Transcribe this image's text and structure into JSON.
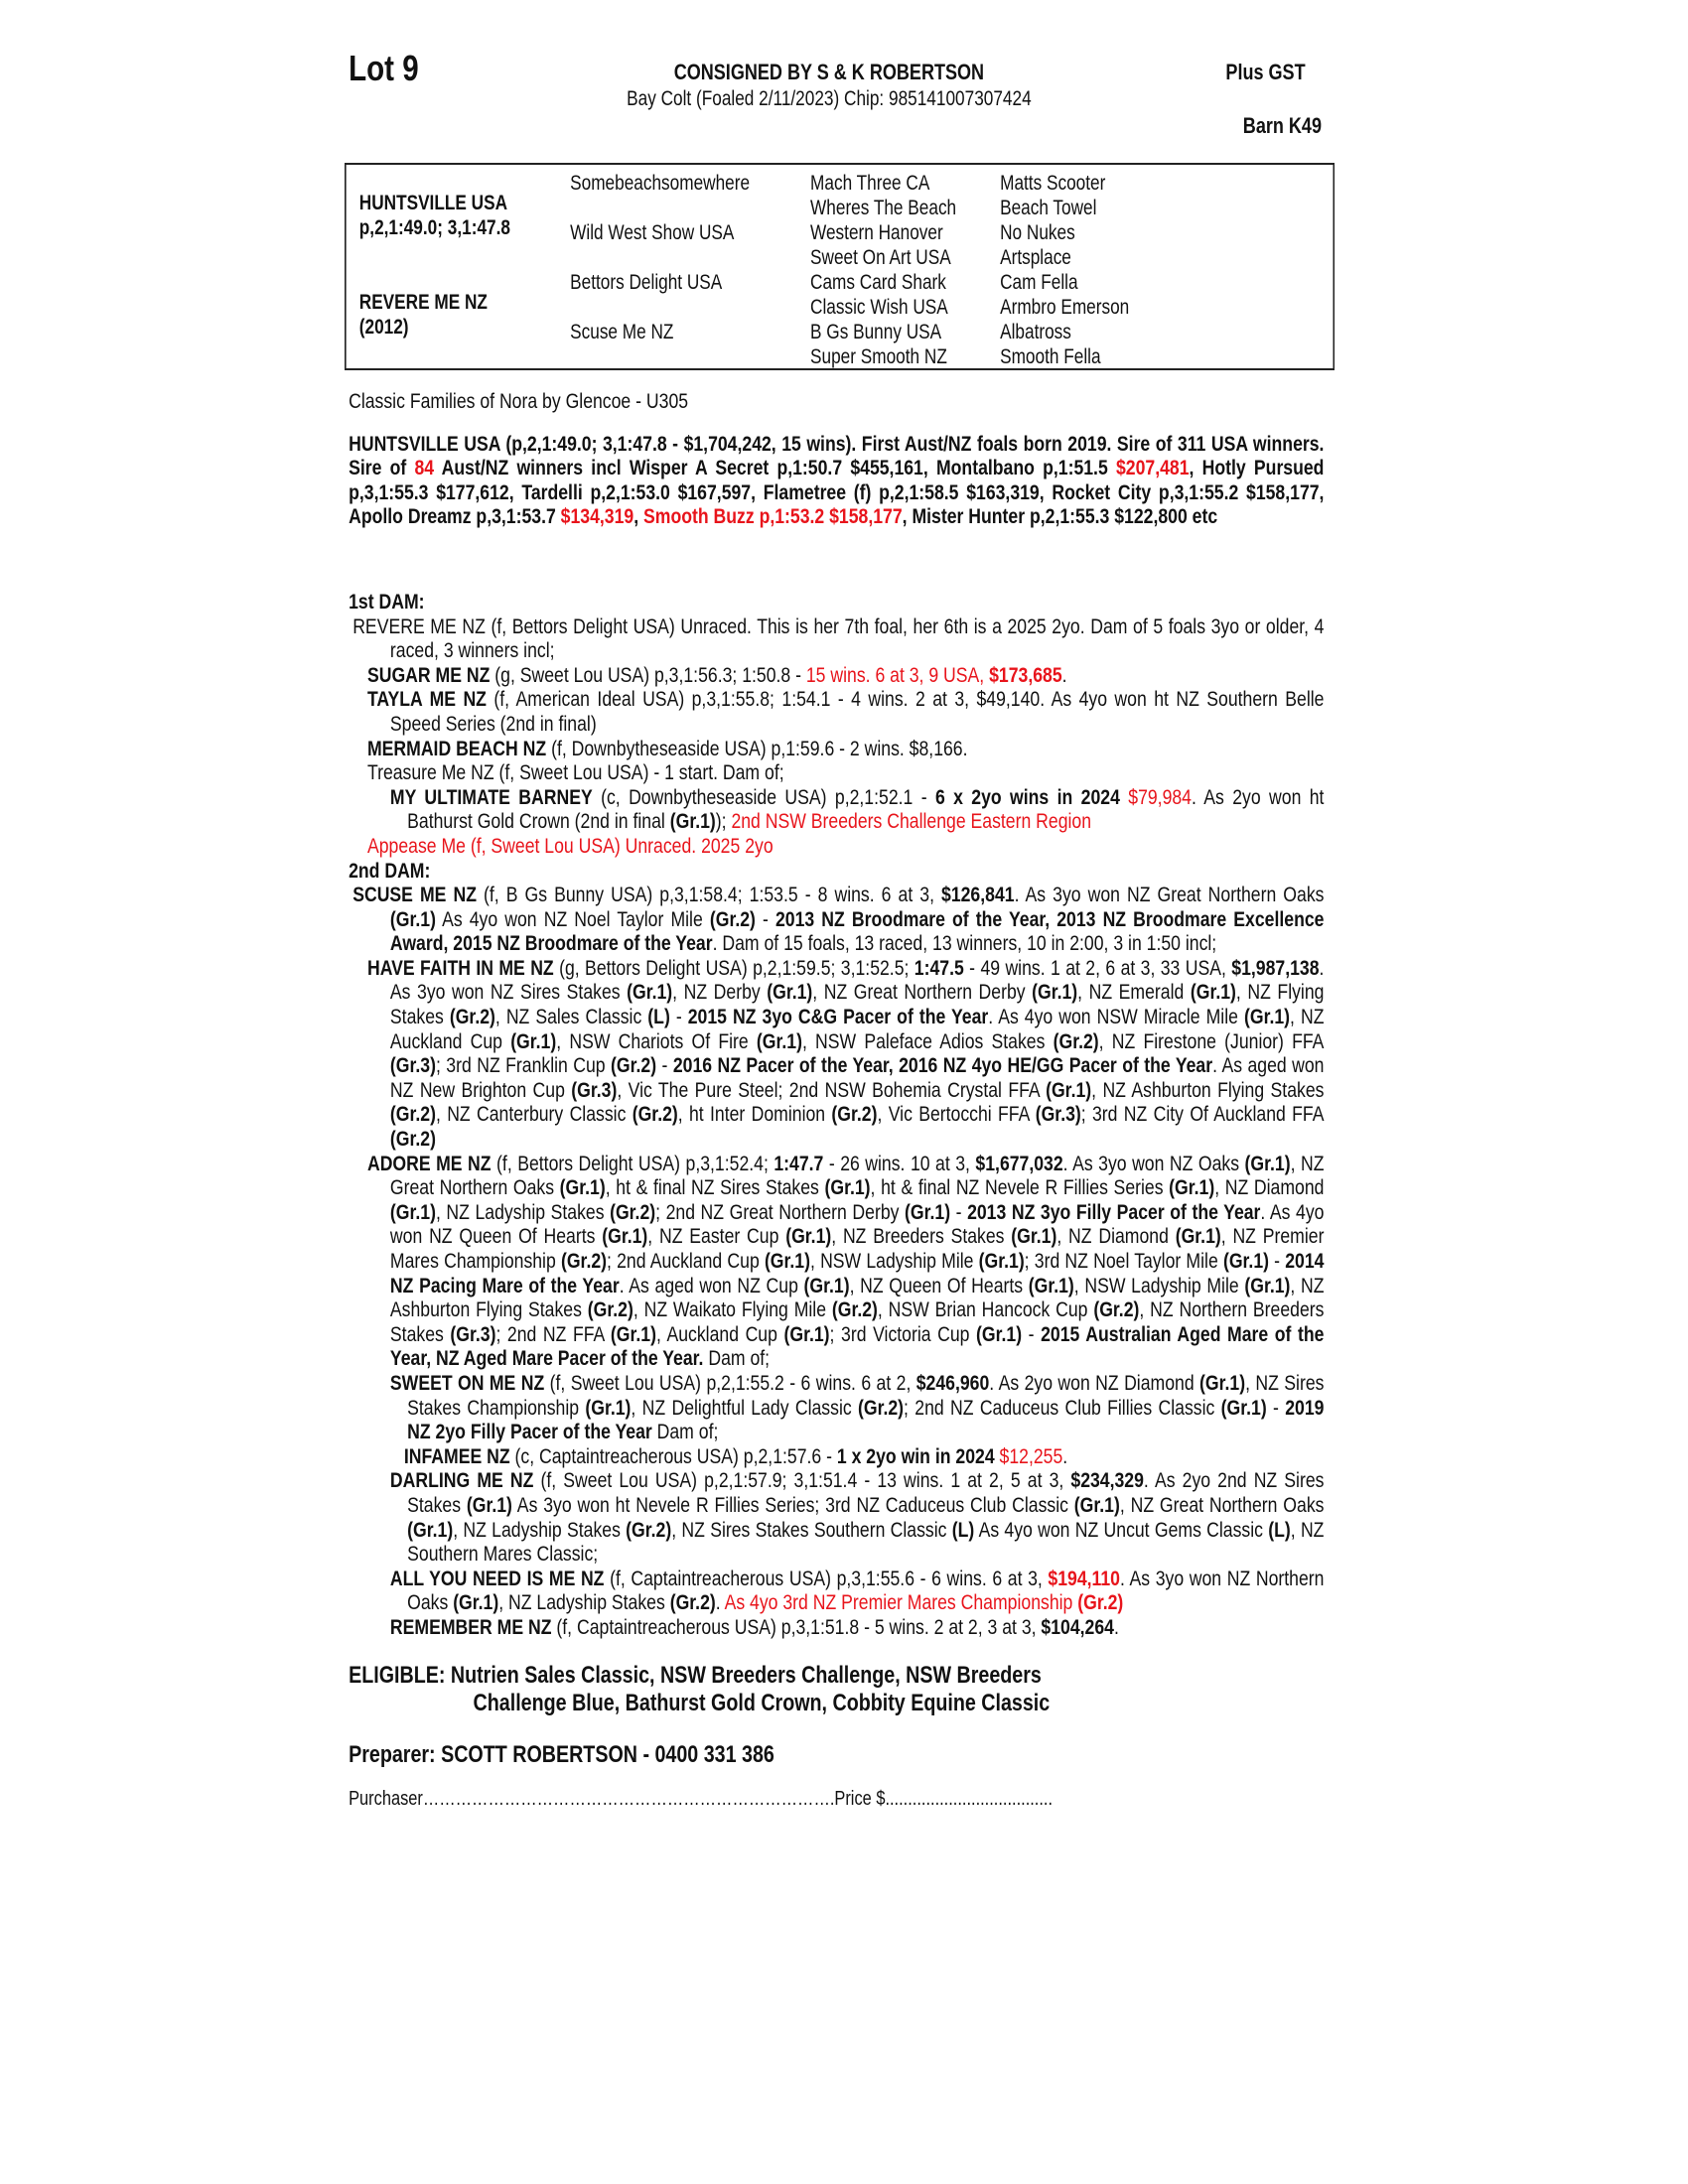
{
  "header": {
    "lot": "Lot 9",
    "consigned": "CONSIGNED BY S & K ROBERTSON",
    "subtitle": "Bay Colt (Foaled 2/11/2023) Chip: 985141007307424",
    "gst": "Plus GST",
    "barn": "Barn K49"
  },
  "pedigree": {
    "sire": "HUNTSVILLE USA",
    "sire_record": "p,2,1:49.0; 3,1:47.8",
    "dam": "REVERE ME NZ",
    "dam_year": "(2012)",
    "gen2": [
      "Somebeachsomewhere",
      "Wild West Show USA",
      "Bettors Delight USA",
      "Scuse Me NZ"
    ],
    "gen3": [
      "Mach Three CA",
      "Wheres The Beach",
      "Western Hanover",
      "Sweet On Art USA",
      "Cams Card Shark",
      "Classic Wish USA",
      "B Gs Bunny USA",
      "Super Smooth NZ"
    ],
    "gen4": [
      "Matts Scooter",
      "Beach Towel",
      "No Nukes",
      "Artsplace",
      "Cam Fella",
      "Armbro Emerson",
      "Albatross",
      "Smooth Fella"
    ]
  },
  "family": "Classic Families of Nora by Glencoe - U305",
  "accent_color": "#e8141b",
  "paras": [
    {
      "cls": "p b",
      "segs": [
        {
          "t": "HUNTSVILLE USA (p,2,1:49.0; 3,1:47.8 - $1,704,242, 15 wins).  First Aust/NZ foals born 2019. Sire of 311 USA winners. Sire of ",
          "s": ""
        },
        {
          "t": "84",
          "s": "r"
        },
        {
          "t": " Aust/NZ winners incl Wisper A Secret p,1:50.7 $455,161, Montalbano p,1:51.5 ",
          "s": ""
        },
        {
          "t": "$207,481",
          "s": "r"
        },
        {
          "t": ", Hotly Pursued p,3,1:55.3 $177,612, Tardelli p,2,1:53.0 $167,597, Flametree (f) p,2,1:58.5 $163,319, Rocket City p,3,1:55.2 $158,177, Apollo Dreamz p,3,1:53.7 ",
          "s": ""
        },
        {
          "t": "$134,319",
          "s": "r"
        },
        {
          "t": ", ",
          "s": ""
        },
        {
          "t": "Smooth Buzz p,1:53.2 $158,177",
          "s": "r"
        },
        {
          "t": ", Mister Hunter p,2,1:55.3 $122,800 etc",
          "s": ""
        }
      ]
    },
    {
      "cls": "gap",
      "segs": []
    },
    {
      "cls": "p hd",
      "segs": [
        {
          "t": "1st DAM:",
          "s": ""
        }
      ]
    },
    {
      "cls": "p l0",
      "segs": [
        {
          "t": "REVERE ME NZ (f, Bettors Delight USA) Unraced. This is her 7th foal, her 6th is a 2025 2yo. Dam of 5 foals 3yo or older, 4 raced, 3 winners incl;",
          "s": ""
        }
      ]
    },
    {
      "cls": "p l1",
      "segs": [
        {
          "t": "SUGAR ME NZ",
          "s": "b"
        },
        {
          "t": " (g, Sweet Lou USA) p,3,1:56.3; 1:50.8 - ",
          "s": ""
        },
        {
          "t": "15 wins. 6 at 3, 9 USA, ",
          "s": "r"
        },
        {
          "t": "$173,685",
          "s": "b r"
        },
        {
          "t": ".",
          "s": ""
        }
      ]
    },
    {
      "cls": "p l1",
      "segs": [
        {
          "t": "TAYLA ME NZ",
          "s": "b"
        },
        {
          "t": " (f, American Ideal USA) p,3,1:55.8; 1:54.1 - 4 wins. 2 at 3, $49,140. As 4yo won ht NZ Southern Belle Speed Series (2nd in final)",
          "s": ""
        }
      ]
    },
    {
      "cls": "p l1",
      "segs": [
        {
          "t": "MERMAID BEACH NZ",
          "s": "b"
        },
        {
          "t": " (f, Downbytheseaside USA) p,1:59.6 - 2 wins. $8,166.",
          "s": ""
        }
      ]
    },
    {
      "cls": "p l1",
      "segs": [
        {
          "t": "Treasure Me NZ (f, Sweet Lou USA) - 1 start. Dam of;",
          "s": ""
        }
      ]
    },
    {
      "cls": "p l2",
      "segs": [
        {
          "t": "MY ULTIMATE BARNEY",
          "s": "b"
        },
        {
          "t": " (c, Downbytheseaside USA) p,2,1:52.1 - ",
          "s": ""
        },
        {
          "t": "6 x 2yo wins in 2024",
          "s": "b"
        },
        {
          "t": " ",
          "s": ""
        },
        {
          "t": "$79,984",
          "s": "r"
        },
        {
          "t": ". As 2yo won ht Bathurst Gold Crown (2nd in final ",
          "s": ""
        },
        {
          "t": "(Gr.1)",
          "s": "b"
        },
        {
          "t": "); ",
          "s": ""
        },
        {
          "t": "2nd NSW Breeders Challenge Eastern Region",
          "s": "r"
        }
      ]
    },
    {
      "cls": "p l1",
      "segs": [
        {
          "t": "Appease Me (f, Sweet Lou USA) Unraced. 2025 2yo",
          "s": "r"
        }
      ]
    },
    {
      "cls": "p hd",
      "segs": [
        {
          "t": "2nd DAM:",
          "s": ""
        }
      ]
    },
    {
      "cls": "p l0",
      "segs": [
        {
          "t": "SCUSE ME NZ",
          "s": "b"
        },
        {
          "t": " (f, B Gs Bunny USA) p,3,1:58.4; 1:53.5 - 8 wins. 6 at 3, ",
          "s": ""
        },
        {
          "t": "$126,841",
          "s": "b"
        },
        {
          "t": ". As 3yo won NZ Great Northern Oaks ",
          "s": ""
        },
        {
          "t": "(Gr.1)",
          "s": "b"
        },
        {
          "t": " As 4yo won NZ Noel Taylor Mile ",
          "s": ""
        },
        {
          "t": "(Gr.2)",
          "s": "b"
        },
        {
          "t": " - ",
          "s": ""
        },
        {
          "t": "2013 NZ Broodmare of the Year, 2013 NZ Broodmare Excellence Award, 2015 NZ Broodmare of the Year",
          "s": "b"
        },
        {
          "t": ". Dam of 15 foals, 13 raced, 13 winners, 10 in 2:00, 3 in 1:50 incl;",
          "s": ""
        }
      ]
    },
    {
      "cls": "p l1",
      "segs": [
        {
          "t": "HAVE FAITH IN ME NZ",
          "s": "b"
        },
        {
          "t": " (g, Bettors Delight USA) p,2,1:59.5; 3,1:52.5; ",
          "s": ""
        },
        {
          "t": "1:47.5",
          "s": "b"
        },
        {
          "t": " - 49 wins. 1 at 2, 6 at 3, 33 USA, ",
          "s": ""
        },
        {
          "t": "$1,987,138",
          "s": "b"
        },
        {
          "t": ". As 3yo won NZ Sires Stakes ",
          "s": ""
        },
        {
          "t": "(Gr.1)",
          "s": "b"
        },
        {
          "t": ", NZ Derby ",
          "s": ""
        },
        {
          "t": "(Gr.1)",
          "s": "b"
        },
        {
          "t": ", NZ Great Northern Derby ",
          "s": ""
        },
        {
          "t": "(Gr.1)",
          "s": "b"
        },
        {
          "t": ", NZ Emerald ",
          "s": ""
        },
        {
          "t": "(Gr.1)",
          "s": "b"
        },
        {
          "t": ", NZ Flying Stakes ",
          "s": ""
        },
        {
          "t": "(Gr.2)",
          "s": "b"
        },
        {
          "t": ", NZ Sales Classic ",
          "s": ""
        },
        {
          "t": "(L)",
          "s": "b"
        },
        {
          "t": " - ",
          "s": ""
        },
        {
          "t": "2015 NZ 3yo C&G Pacer of the Year",
          "s": "b"
        },
        {
          "t": ". As 4yo won NSW Miracle Mile ",
          "s": ""
        },
        {
          "t": "(Gr.1)",
          "s": "b"
        },
        {
          "t": ", NZ Auckland Cup ",
          "s": ""
        },
        {
          "t": "(Gr.1)",
          "s": "b"
        },
        {
          "t": ", NSW Chariots Of Fire ",
          "s": ""
        },
        {
          "t": "(Gr.1)",
          "s": "b"
        },
        {
          "t": ", NSW Paleface Adios Stakes ",
          "s": ""
        },
        {
          "t": "(Gr.2)",
          "s": "b"
        },
        {
          "t": ", NZ Firestone (Junior) FFA ",
          "s": ""
        },
        {
          "t": "(Gr.3)",
          "s": "b"
        },
        {
          "t": "; 3rd NZ Franklin Cup ",
          "s": ""
        },
        {
          "t": "(Gr.2)",
          "s": "b"
        },
        {
          "t": " - ",
          "s": ""
        },
        {
          "t": "2016 NZ Pacer of the Year, 2016 NZ 4yo HE/GG Pacer of the Year",
          "s": "b"
        },
        {
          "t": ". As aged won NZ New Brighton Cup ",
          "s": ""
        },
        {
          "t": "(Gr.3)",
          "s": "b"
        },
        {
          "t": ", Vic The Pure Steel; 2nd NSW Bohemia Crystal FFA ",
          "s": ""
        },
        {
          "t": "(Gr.1)",
          "s": "b"
        },
        {
          "t": ", NZ Ashburton Flying Stakes ",
          "s": ""
        },
        {
          "t": "(Gr.2)",
          "s": "b"
        },
        {
          "t": ", NZ Canterbury Classic ",
          "s": ""
        },
        {
          "t": "(Gr.2)",
          "s": "b"
        },
        {
          "t": ", ht Inter Dominion ",
          "s": ""
        },
        {
          "t": "(Gr.2)",
          "s": "b"
        },
        {
          "t": ", Vic Bertocchi FFA ",
          "s": ""
        },
        {
          "t": "(Gr.3)",
          "s": "b"
        },
        {
          "t": "; 3rd NZ City Of Auckland FFA ",
          "s": ""
        },
        {
          "t": "(Gr.2)",
          "s": "b"
        }
      ]
    },
    {
      "cls": "p l1",
      "segs": [
        {
          "t": "ADORE ME NZ",
          "s": "b"
        },
        {
          "t": " (f, Bettors Delight USA) p,3,1:52.4; ",
          "s": ""
        },
        {
          "t": "1:47.7",
          "s": "b"
        },
        {
          "t": " - 26 wins. 10 at 3, ",
          "s": ""
        },
        {
          "t": "$1,677,032",
          "s": "b"
        },
        {
          "t": ". As 3yo won NZ Oaks ",
          "s": ""
        },
        {
          "t": "(Gr.1)",
          "s": "b"
        },
        {
          "t": ", NZ Great Northern Oaks ",
          "s": ""
        },
        {
          "t": "(Gr.1)",
          "s": "b"
        },
        {
          "t": ", ht & final NZ Sires Stakes ",
          "s": ""
        },
        {
          "t": "(Gr.1)",
          "s": "b"
        },
        {
          "t": ", ht & final NZ Nevele R Fillies Series ",
          "s": ""
        },
        {
          "t": "(Gr.1)",
          "s": "b"
        },
        {
          "t": ", NZ Diamond ",
          "s": ""
        },
        {
          "t": "(Gr.1)",
          "s": "b"
        },
        {
          "t": ", NZ Ladyship Stakes ",
          "s": ""
        },
        {
          "t": "(Gr.2)",
          "s": "b"
        },
        {
          "t": "; 2nd NZ Great Northern Derby ",
          "s": ""
        },
        {
          "t": "(Gr.1)",
          "s": "b"
        },
        {
          "t": " - ",
          "s": ""
        },
        {
          "t": "2013 NZ 3yo Filly Pacer of the Year",
          "s": "b"
        },
        {
          "t": ". As 4yo won NZ Queen Of Hearts ",
          "s": ""
        },
        {
          "t": "(Gr.1)",
          "s": "b"
        },
        {
          "t": ", NZ Easter Cup ",
          "s": ""
        },
        {
          "t": "(Gr.1)",
          "s": "b"
        },
        {
          "t": ", NZ Breeders Stakes ",
          "s": ""
        },
        {
          "t": "(Gr.1)",
          "s": "b"
        },
        {
          "t": ", NZ Diamond ",
          "s": ""
        },
        {
          "t": "(Gr.1)",
          "s": "b"
        },
        {
          "t": ", NZ Premier Mares Championship ",
          "s": ""
        },
        {
          "t": "(Gr.2)",
          "s": "b"
        },
        {
          "t": "; 2nd Auckland Cup ",
          "s": ""
        },
        {
          "t": "(Gr.1)",
          "s": "b"
        },
        {
          "t": ", NSW Ladyship Mile ",
          "s": ""
        },
        {
          "t": "(Gr.1)",
          "s": "b"
        },
        {
          "t": "; 3rd NZ Noel Taylor Mile ",
          "s": ""
        },
        {
          "t": "(Gr.1)",
          "s": "b"
        },
        {
          "t": " - ",
          "s": ""
        },
        {
          "t": "2014 NZ Pacing Mare of the Year",
          "s": "b"
        },
        {
          "t": ". As aged won NZ Cup ",
          "s": ""
        },
        {
          "t": "(Gr.1)",
          "s": "b"
        },
        {
          "t": ", NZ Queen Of Hearts ",
          "s": ""
        },
        {
          "t": "(Gr.1)",
          "s": "b"
        },
        {
          "t": ", NSW Ladyship Mile ",
          "s": ""
        },
        {
          "t": "(Gr.1)",
          "s": "b"
        },
        {
          "t": ", NZ Ashburton Flying Stakes ",
          "s": ""
        },
        {
          "t": "(Gr.2)",
          "s": "b"
        },
        {
          "t": ", NZ Waikato Flying Mile ",
          "s": ""
        },
        {
          "t": "(Gr.2)",
          "s": "b"
        },
        {
          "t": ", NSW Brian Hancock Cup ",
          "s": ""
        },
        {
          "t": "(Gr.2)",
          "s": "b"
        },
        {
          "t": ", NZ Northern Breeders Stakes ",
          "s": ""
        },
        {
          "t": "(Gr.3)",
          "s": "b"
        },
        {
          "t": "; 2nd NZ FFA ",
          "s": ""
        },
        {
          "t": "(Gr.1)",
          "s": "b"
        },
        {
          "t": ", Auckland Cup ",
          "s": ""
        },
        {
          "t": "(Gr.1)",
          "s": "b"
        },
        {
          "t": "; 3rd Victoria Cup ",
          "s": ""
        },
        {
          "t": "(Gr.1)",
          "s": "b"
        },
        {
          "t": " - ",
          "s": ""
        },
        {
          "t": "2015 Australian Aged Mare of the Year, NZ Aged Mare Pacer of the Year.",
          "s": "b"
        },
        {
          "t": " Dam of;",
          "s": ""
        }
      ]
    },
    {
      "cls": "p l2",
      "segs": [
        {
          "t": "SWEET ON ME NZ",
          "s": "b"
        },
        {
          "t": " (f, Sweet Lou USA) p,2,1:55.2 - 6 wins. 6 at 2, ",
          "s": ""
        },
        {
          "t": "$246,960",
          "s": "b"
        },
        {
          "t": ". As 2yo won NZ Diamond ",
          "s": ""
        },
        {
          "t": "(Gr.1)",
          "s": "b"
        },
        {
          "t": ", NZ Sires Stakes Championship ",
          "s": ""
        },
        {
          "t": "(Gr.1)",
          "s": "b"
        },
        {
          "t": ", NZ Delightful Lady Classic ",
          "s": ""
        },
        {
          "t": "(Gr.2)",
          "s": "b"
        },
        {
          "t": "; 2nd NZ Caduceus Club Fillies Classic ",
          "s": ""
        },
        {
          "t": "(Gr.1)",
          "s": "b"
        },
        {
          "t": " - ",
          "s": ""
        },
        {
          "t": "2019 NZ 2yo Filly Pacer of the Year",
          "s": "b"
        },
        {
          "t": " Dam of;",
          "s": ""
        }
      ]
    },
    {
      "cls": "p l3",
      "segs": [
        {
          "t": "INFAMEE NZ",
          "s": "b"
        },
        {
          "t": " (c, Captaintreacherous USA) p,2,1:57.6 - ",
          "s": ""
        },
        {
          "t": "1 x 2yo win in 2024",
          "s": "b"
        },
        {
          "t": " ",
          "s": ""
        },
        {
          "t": "$12,255",
          "s": "r"
        },
        {
          "t": ".",
          "s": ""
        }
      ]
    },
    {
      "cls": "p l2",
      "segs": [
        {
          "t": "DARLING ME NZ",
          "s": "b"
        },
        {
          "t": " (f, Sweet Lou USA) p,2,1:57.9; 3,1:51.4 - 13 wins. 1 at 2, 5 at 3, ",
          "s": ""
        },
        {
          "t": "$234,329",
          "s": "b"
        },
        {
          "t": ". As 2yo 2nd NZ Sires Stakes ",
          "s": ""
        },
        {
          "t": "(Gr.1)",
          "s": "b"
        },
        {
          "t": " As 3yo won ht Nevele R Fillies Series; 3rd NZ Caduceus Club Classic ",
          "s": ""
        },
        {
          "t": "(Gr.1)",
          "s": "b"
        },
        {
          "t": ", NZ Great Northern Oaks ",
          "s": ""
        },
        {
          "t": "(Gr.1)",
          "s": "b"
        },
        {
          "t": ", NZ Ladyship Stakes ",
          "s": ""
        },
        {
          "t": "(Gr.2)",
          "s": "b"
        },
        {
          "t": ", NZ Sires Stakes Southern Classic ",
          "s": ""
        },
        {
          "t": "(L)",
          "s": "b"
        },
        {
          "t": " As 4yo won NZ Uncut Gems Classic ",
          "s": ""
        },
        {
          "t": "(L)",
          "s": "b"
        },
        {
          "t": ", NZ Southern Mares Classic;",
          "s": ""
        }
      ]
    },
    {
      "cls": "p l2",
      "segs": [
        {
          "t": "ALL YOU NEED IS ME NZ",
          "s": "b"
        },
        {
          "t": " (f, Captaintreacherous USA) p,3,1:55.6 - 6 wins. 6 at 3, ",
          "s": ""
        },
        {
          "t": "$194,110",
          "s": "b r"
        },
        {
          "t": ". As 3yo won NZ Northern Oaks ",
          "s": ""
        },
        {
          "t": "(Gr.1)",
          "s": "b"
        },
        {
          "t": ", NZ Ladyship Stakes ",
          "s": ""
        },
        {
          "t": "(Gr.2)",
          "s": "b"
        },
        {
          "t": ". ",
          "s": ""
        },
        {
          "t": "As 4yo 3rd NZ Premier Mares Championship ",
          "s": "r"
        },
        {
          "t": "(Gr.2)",
          "s": "b r"
        }
      ]
    },
    {
      "cls": "p l2",
      "segs": [
        {
          "t": "REMEMBER ME NZ",
          "s": "b"
        },
        {
          "t": " (f, Captaintreacherous USA) p,3,1:51.8 - 5 wins. 2 at 2, 3 at 3, ",
          "s": ""
        },
        {
          "t": "$104,264",
          "s": "b"
        },
        {
          "t": ".",
          "s": ""
        }
      ]
    }
  ],
  "eligible": {
    "line1": "ELIGIBLE: Nutrien Sales Classic, NSW Breeders Challenge, NSW Breeders",
    "line2": "Challenge Blue, Bathurst Gold Crown, Cobbity Equine Classic"
  },
  "preparer": "Preparer: SCOTT ROBERTSON - 0400 331 386",
  "purchaser": "Purchaser………………………………………………………………….Price $.....................................",
  "_colors": {
    "text": "#111111",
    "red": "#e8141b"
  }
}
